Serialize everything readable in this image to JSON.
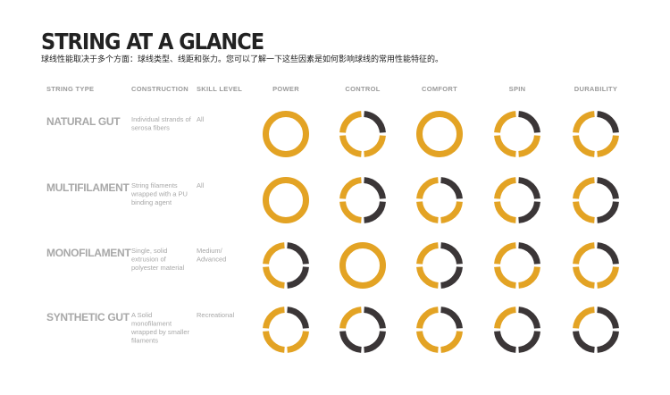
{
  "header": {
    "title": "STRING AT A GLANCE",
    "subtitle": "球线性能取决于多个方面：球线类型、线距和张力。您可以了解一下这些因素是如何影响球线的常用性能特征的。"
  },
  "columns": [
    "STRING TYPE",
    "CONSTRUCTION",
    "SKILL LEVEL",
    "POWER",
    "CONTROL",
    "COMFORT",
    "SPIN",
    "DURABILITY"
  ],
  "scale_max": 4,
  "colors": {
    "filled": "#e3a324",
    "empty": "#3b3637"
  },
  "rows": [
    {
      "type": "NATURAL GUT",
      "construction": [
        "Individual strands of",
        "serosa fibers"
      ],
      "skill": [
        "All"
      ],
      "ratings": [
        4,
        3,
        4,
        3,
        3
      ]
    },
    {
      "type": "MULTIFILAMENT",
      "construction": [
        "String filaments",
        "wrapped with a PU",
        "binding agent"
      ],
      "skill": [
        "All"
      ],
      "ratings": [
        4,
        2,
        3,
        2,
        2
      ]
    },
    {
      "type": "MONOFILAMENT",
      "construction": [
        "Single, solid",
        "extrusion of",
        "polyester material"
      ],
      "skill": [
        "Medium/",
        "Advanced"
      ],
      "ratings": [
        2,
        4,
        2,
        3,
        3
      ]
    },
    {
      "type": "SYNTHETIC GUT",
      "construction": [
        "A Solid",
        "monofilament",
        "wrapped by smaller",
        "filaments"
      ],
      "skill": [
        "Recreational"
      ],
      "ratings": [
        3,
        1,
        3,
        1,
        1
      ]
    }
  ]
}
